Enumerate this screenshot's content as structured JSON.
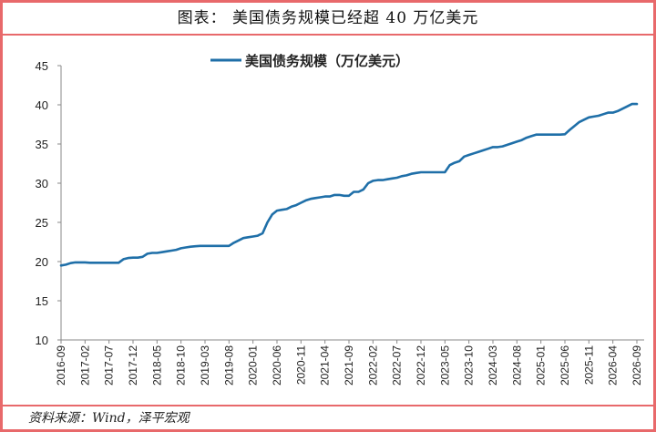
{
  "figure": {
    "header": "图表：  美国债务规模已经超 40 万亿美元",
    "source": "资料来源：Wind，泽平宏观"
  },
  "colors": {
    "frame": "#e8696b",
    "series": "#1f6fa8"
  },
  "chart_data": {
    "type": "line",
    "title": "",
    "xlabel": "",
    "ylabel": "",
    "ylim": [
      10,
      45
    ],
    "yticks": [
      "10",
      "15",
      "20",
      "25",
      "30",
      "35",
      "40",
      "45"
    ],
    "xticks": [
      "2016-09",
      "2017-02",
      "2017-07",
      "2017-12",
      "2018-05",
      "2018-10",
      "2019-03",
      "2019-08",
      "2020-01",
      "2020-06",
      "2020-11",
      "2021-04",
      "2021-09",
      "2022-02",
      "2022-07",
      "2022-12",
      "2023-05",
      "2023-10",
      "2024-03",
      "2024-08",
      "2025-01",
      "2025-06",
      "2025-11",
      "2026-04",
      "2026-09"
    ],
    "legend": {
      "position": "top-center"
    },
    "grid": false,
    "series": [
      {
        "name": "美国债务规模（万亿美元）",
        "x": [
          "2016-09",
          "2016-10",
          "2016-11",
          "2016-12",
          "2017-01",
          "2017-02",
          "2017-03",
          "2017-04",
          "2017-05",
          "2017-06",
          "2017-07",
          "2017-08",
          "2017-09",
          "2017-10",
          "2017-11",
          "2017-12",
          "2018-01",
          "2018-02",
          "2018-03",
          "2018-04",
          "2018-05",
          "2018-06",
          "2018-07",
          "2018-08",
          "2018-09",
          "2018-10",
          "2018-11",
          "2018-12",
          "2019-01",
          "2019-02",
          "2019-03",
          "2019-04",
          "2019-05",
          "2019-06",
          "2019-07",
          "2019-08",
          "2019-09",
          "2019-10",
          "2019-11",
          "2019-12",
          "2020-01",
          "2020-02",
          "2020-03",
          "2020-04",
          "2020-05",
          "2020-06",
          "2020-07",
          "2020-08",
          "2020-09",
          "2020-10",
          "2020-11",
          "2020-12",
          "2021-01",
          "2021-02",
          "2021-03",
          "2021-04",
          "2021-05",
          "2021-06",
          "2021-07",
          "2021-08",
          "2021-09",
          "2021-10",
          "2021-11",
          "2021-12",
          "2022-01",
          "2022-02",
          "2022-03",
          "2022-04",
          "2022-05",
          "2022-06",
          "2022-07",
          "2022-08",
          "2022-09",
          "2022-10",
          "2022-11",
          "2022-12",
          "2023-01",
          "2023-02",
          "2023-03",
          "2023-04",
          "2023-05",
          "2023-06",
          "2023-07",
          "2023-08",
          "2023-09",
          "2023-10",
          "2023-11",
          "2023-12",
          "2024-01",
          "2024-02",
          "2024-03",
          "2024-04",
          "2024-05",
          "2024-06",
          "2024-07",
          "2024-08",
          "2024-09",
          "2024-10",
          "2024-11",
          "2024-12",
          "2025-01",
          "2025-02",
          "2025-03",
          "2025-04",
          "2025-05",
          "2025-06",
          "2025-07",
          "2025-08",
          "2025-09",
          "2025-10",
          "2025-11",
          "2025-12",
          "2026-01",
          "2026-02",
          "2026-03",
          "2026-04",
          "2026-05",
          "2026-06",
          "2026-07",
          "2026-08",
          "2026-09"
        ],
        "values": [
          19.5,
          19.6,
          19.8,
          19.9,
          19.9,
          19.9,
          19.85,
          19.85,
          19.85,
          19.85,
          19.85,
          19.85,
          19.85,
          20.3,
          20.45,
          20.5,
          20.5,
          20.6,
          21.0,
          21.1,
          21.1,
          21.2,
          21.3,
          21.4,
          21.5,
          21.7,
          21.8,
          21.9,
          21.95,
          22.0,
          22.0,
          22.0,
          22.0,
          22.0,
          22.0,
          22.0,
          22.4,
          22.7,
          23.0,
          23.1,
          23.2,
          23.3,
          23.6,
          25.0,
          26.0,
          26.5,
          26.6,
          26.7,
          27.0,
          27.2,
          27.5,
          27.8,
          28.0,
          28.1,
          28.2,
          28.3,
          28.3,
          28.5,
          28.5,
          28.4,
          28.4,
          28.9,
          28.9,
          29.2,
          30.0,
          30.3,
          30.4,
          30.4,
          30.5,
          30.6,
          30.7,
          30.9,
          31.0,
          31.2,
          31.3,
          31.4,
          31.4,
          31.4,
          31.4,
          31.4,
          31.4,
          32.3,
          32.6,
          32.8,
          33.4,
          33.6,
          33.8,
          34.0,
          34.2,
          34.4,
          34.6,
          34.6,
          34.7,
          34.9,
          35.1,
          35.3,
          35.5,
          35.8,
          36.0,
          36.2,
          36.2,
          36.2,
          36.2,
          36.2,
          36.2,
          36.25,
          36.8,
          37.3,
          37.8,
          38.1,
          38.4,
          38.5,
          38.6,
          38.8,
          39.0,
          39.0,
          39.2,
          39.5,
          39.8,
          40.1,
          40.1
        ]
      }
    ]
  }
}
